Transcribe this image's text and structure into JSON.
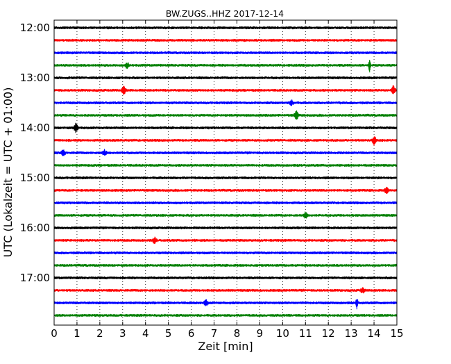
{
  "chart_data": {
    "type": "line",
    "title": "BW.ZUGS..HHZ 2017-12-14",
    "xlabel": "Zeit  [min]",
    "ylabel": "UTC (Lokalzeit = UTC + 01:00)",
    "xlim": [
      0,
      15
    ],
    "x_ticks": [
      "0",
      "1",
      "2",
      "3",
      "4",
      "5",
      "6",
      "7",
      "8",
      "9",
      "10",
      "11",
      "12",
      "13",
      "14",
      "15"
    ],
    "y_ticks": [
      "12:00",
      "13:00",
      "14:00",
      "15:00",
      "16:00",
      "17:00"
    ],
    "grid": "vertical-dotted",
    "row_minutes": 15,
    "trace_colors": [
      "#000000",
      "#ff0000",
      "#0000ff",
      "#008000"
    ],
    "rows": [
      "12:00",
      "12:15",
      "12:30",
      "12:45",
      "13:00",
      "13:15",
      "13:30",
      "13:45",
      "14:00",
      "14:15",
      "14:30",
      "14:45",
      "15:00",
      "15:15",
      "15:30",
      "15:45",
      "16:00",
      "16:15",
      "16:30",
      "16:45",
      "17:00",
      "17:15",
      "17:30",
      "17:45"
    ],
    "events": [
      {
        "row": "12:45",
        "minute": 13.8,
        "amplitude": "large"
      },
      {
        "row": "12:45",
        "minute": 3.2,
        "amplitude": "small"
      },
      {
        "row": "13:15",
        "minute": 3.05,
        "amplitude": "medium"
      },
      {
        "row": "13:15",
        "minute": 14.85,
        "amplitude": "medium"
      },
      {
        "row": "13:30",
        "minute": 10.4,
        "amplitude": "small"
      },
      {
        "row": "13:45",
        "minute": 10.6,
        "amplitude": "medium"
      },
      {
        "row": "14:00",
        "minute": 0.95,
        "amplitude": "medium"
      },
      {
        "row": "14:15",
        "minute": 14.0,
        "amplitude": "medium"
      },
      {
        "row": "14:30",
        "minute": 0.4,
        "amplitude": "small"
      },
      {
        "row": "14:30",
        "minute": 2.2,
        "amplitude": "small"
      },
      {
        "row": "15:15",
        "minute": 14.55,
        "amplitude": "small"
      },
      {
        "row": "15:45",
        "minute": 11.0,
        "amplitude": "small"
      },
      {
        "row": "16:15",
        "minute": 4.4,
        "amplitude": "small"
      },
      {
        "row": "17:15",
        "minute": 13.5,
        "amplitude": "small"
      },
      {
        "row": "17:30",
        "minute": 6.65,
        "amplitude": "small"
      },
      {
        "row": "17:30",
        "minute": 13.25,
        "amplitude": "large"
      }
    ]
  }
}
